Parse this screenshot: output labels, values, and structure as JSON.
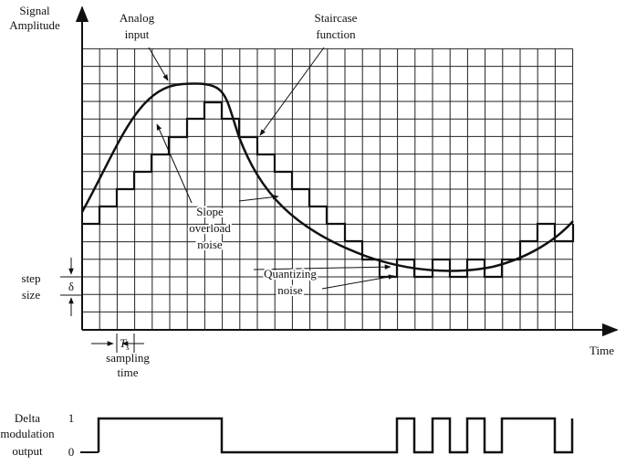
{
  "axes": {
    "y_label": [
      "Signal",
      "Amplitude"
    ],
    "x_label": "Time"
  },
  "annotations": {
    "analog_input": [
      "Analog",
      "input"
    ],
    "staircase": [
      "Staircase",
      "function"
    ],
    "slope_overload": [
      "Slope",
      "overload",
      "noise"
    ],
    "quantizing": [
      "Quantizing",
      "noise"
    ],
    "step_size": [
      "step",
      "size"
    ],
    "delta": "δ",
    "sampling_period": {
      "symbol": "T",
      "subscript": "s"
    },
    "sampling_time": [
      "sampling",
      "time"
    ]
  },
  "output": {
    "label": [
      "Delta",
      "modulation",
      "output"
    ],
    "high": "1",
    "low": "0"
  }
}
